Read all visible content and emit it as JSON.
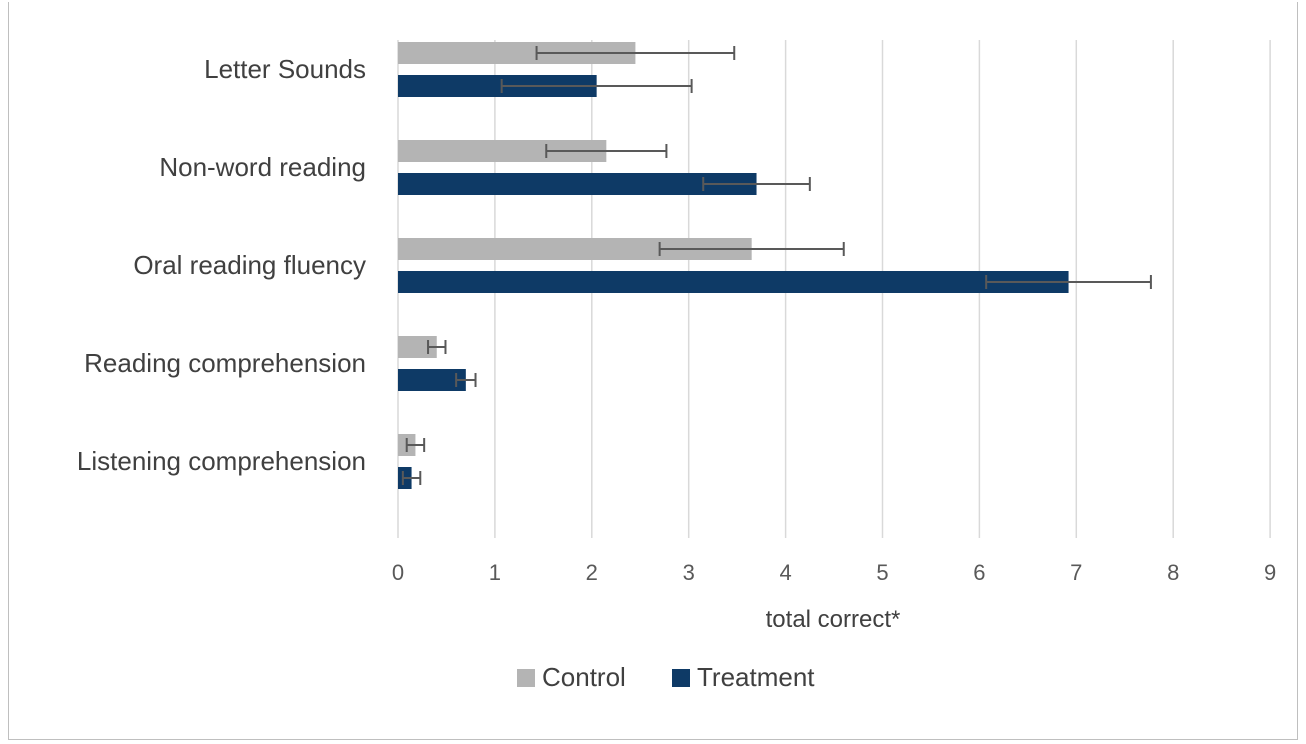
{
  "chart_data": {
    "type": "bar",
    "orientation": "horizontal",
    "categories": [
      "Letter Sounds",
      "Non-word reading",
      "Oral reading fluency",
      "Reading comprehension",
      "Listening comprehension"
    ],
    "series": [
      {
        "name": "Control",
        "color": "#b4b4b4",
        "values": [
          2.45,
          2.15,
          3.65,
          0.4,
          0.18
        ],
        "error": [
          1.02,
          0.62,
          0.95,
          0.09,
          0.09
        ]
      },
      {
        "name": "Treatment",
        "color": "#0e3a66",
        "values": [
          2.05,
          3.7,
          6.92,
          0.7,
          0.14
        ],
        "error": [
          0.98,
          0.55,
          0.85,
          0.1,
          0.09
        ]
      }
    ],
    "xlabel": "total correct*",
    "xlim": [
      0,
      9
    ],
    "xticks": [
      "0",
      "1",
      "2",
      "3",
      "4",
      "5",
      "6",
      "7",
      "8",
      "9"
    ],
    "grid": true,
    "legend_position": "bottom"
  }
}
